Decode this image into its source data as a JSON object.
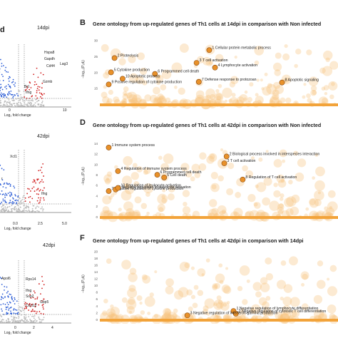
{
  "colors": {
    "bubble": "#f6c27e",
    "highlight": "#e8912a",
    "highlight_edge": "#8a4a10",
    "baseline": "#f2a33a",
    "up": "#d11f1f",
    "down": "#2f5fd6",
    "ns": "#bbbbbb"
  },
  "panels": {
    "a": {
      "corner": "d",
      "dpi": "14dpi",
      "genes": [
        "Hspa8",
        "Gapdh",
        "Cd44",
        "Lag3",
        "Gzmb",
        "Bcl",
        "Ifng"
      ],
      "xlabel": "Log₂ fold change",
      "xticks": [
        "0",
        "10"
      ]
    },
    "b": {
      "letter": "B",
      "title": "Gene ontology from up-regulated genes of Th1 cells at 14dpi in comparison with Non infected"
    },
    "c": {
      "dpi": "42dpi",
      "genes": [
        "Xcl1",
        "r",
        "Ifng"
      ],
      "xlabel": "Log₂ fold change",
      "xticks": [
        "0.0",
        "2.5",
        "5.0"
      ]
    },
    "d": {
      "letter": "D",
      "title": "Gene ontology from up-regulated genes of Th1 cells at 42dpi in comparison with Non infected"
    },
    "e": {
      "dpi": "42dpi",
      "genes": [
        "Apol6",
        "Rps14",
        "Ifng",
        "Ssp2",
        "Gbp5",
        "Cxcl12"
      ],
      "xlabel": "Log₂ fold change",
      "xticks": [
        "0",
        "2",
        "4"
      ]
    },
    "f": {
      "letter": "F",
      "title": "Gene ontology from up-regulated genes of Th1 cells at 42dpi in comparison with 14dpi"
    }
  },
  "chart_data": [
    {
      "type": "scatter",
      "title": "Gene ontology from up-regulated genes of Th1 cells at 14dpi in comparison with Non infected",
      "ylabel": "−log₁₀(Pₐdⱼ)",
      "yticks": [
        15,
        20,
        25,
        30
      ],
      "ylim": [
        10,
        32
      ],
      "highlighted": [
        {
          "id": "1",
          "x": 0.455,
          "y": 27,
          "label": "Cellular protein metabolic process"
        },
        {
          "id": "2",
          "x": 0.045,
          "y": 24.5,
          "label": "Proteolysis"
        },
        {
          "id": "3",
          "x": 0.4,
          "y": 23,
          "label": "T cell activation"
        },
        {
          "id": "4",
          "x": 0.48,
          "y": 21.5,
          "label": "Lymphocyte activation"
        },
        {
          "id": "5",
          "x": 0.03,
          "y": 20,
          "label": "Cytokine production"
        },
        {
          "id": "6",
          "x": 0.22,
          "y": 19.5,
          "label": "Programmed cell death"
        },
        {
          "id": "7",
          "x": 0.41,
          "y": 17,
          "label": "Defense response to protozoan"
        },
        {
          "id": "8",
          "x": 0.77,
          "y": 16.8,
          "label": "Apoptotic signaling"
        },
        {
          "id": "9",
          "x": 0.02,
          "y": 16.2,
          "label": "Positive regulation of cytokine production"
        },
        {
          "id": "10",
          "x": 0.08,
          "y": 18,
          "label": "Apoptotic process"
        }
      ]
    },
    {
      "type": "scatter",
      "title": "Gene ontology from up-regulated genes of Th1 cells at 42dpi in comparison with Non infected",
      "ylabel": "−log₁₀(Pₐdⱼ)",
      "yticks": [
        0,
        2,
        4,
        6,
        8,
        10,
        12,
        14
      ],
      "ylim": [
        0,
        15.5
      ],
      "highlighted": [
        {
          "id": "1",
          "x": 0.02,
          "y": 13.2,
          "label": "Immune system process"
        },
        {
          "id": "2",
          "x": 0.53,
          "y": 11.5,
          "label": "Biological process involved in interspecies interaction"
        },
        {
          "id": "3",
          "x": 0.52,
          "y": 10.2,
          "label": "T cell activation"
        },
        {
          "id": "4",
          "x": 0.06,
          "y": 8.7,
          "label": "Regulation of immune system process"
        },
        {
          "id": "5",
          "x": 0.26,
          "y": 7.5,
          "label": "Cell death"
        },
        {
          "id": "6",
          "x": 0.23,
          "y": 8.0,
          "label": "Programmed cell death"
        },
        {
          "id": "7",
          "x": 0.02,
          "y": 4.9,
          "label": "Negative regulation of cytokine production"
        },
        {
          "id": "8",
          "x": 0.6,
          "y": 7.1,
          "label": "Regulation of T cell activation"
        },
        {
          "id": "9",
          "x": 0.05,
          "y": 5.2,
          "label": "Negative regulation of leukocyte activation"
        },
        {
          "id": "10",
          "x": 0.06,
          "y": 5.5,
          "label": "Regulation of leukocyte activation"
        }
      ]
    },
    {
      "type": "scatter",
      "title": "Gene ontology from up-regulated genes of Th1 cells at 42dpi in comparison with 14dpi",
      "ylabel": "−log₁₀(Pₐdⱼ)",
      "yticks": [
        0,
        2,
        4,
        6,
        8,
        10,
        12,
        14,
        16,
        18,
        20
      ],
      "ylim": [
        0,
        21
      ],
      "highlighted": [
        {
          "id": "1",
          "x": 0.56,
          "y": 2.5,
          "label": "Negative regulation of lymphocyte differentiation"
        },
        {
          "id": "2",
          "x": 0.57,
          "y": 1.7,
          "label": "Negative regulation of cytotoxic T cell differentiation"
        },
        {
          "id": "3",
          "x": 0.36,
          "y": 1.2,
          "label": "Negative regulation of interferon-gamma production"
        }
      ]
    }
  ]
}
